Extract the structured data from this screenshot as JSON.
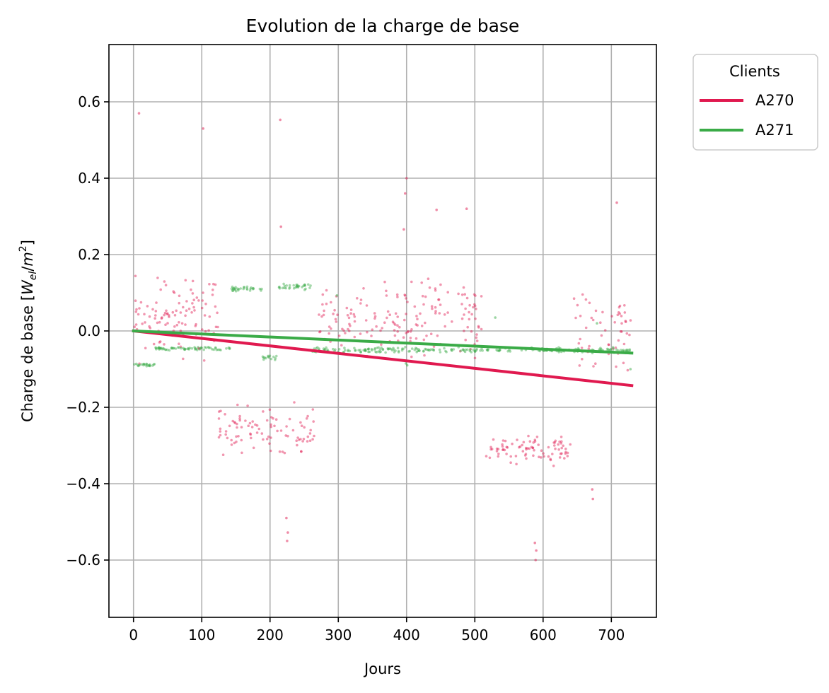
{
  "chart_data": {
    "type": "scatter",
    "title": "Evolution de la charge de base",
    "xlabel": "Jours",
    "ylabel_prefix": "Charge de base [",
    "ylabel_math_base": "W",
    "ylabel_math_sub": "el",
    "ylabel_math_slash": "/",
    "ylabel_math_den": "m",
    "ylabel_math_sup": "2",
    "ylabel_suffix": "]",
    "xlim": [
      -36,
      766
    ],
    "ylim": [
      -0.75,
      0.75
    ],
    "x_ticks": [
      0,
      100,
      200,
      300,
      400,
      500,
      600,
      700
    ],
    "x_tick_labels": [
      "0",
      "100",
      "200",
      "300",
      "400",
      "500",
      "600",
      "700"
    ],
    "y_ticks": [
      -0.6,
      -0.4,
      -0.2,
      0.0,
      0.2,
      0.4,
      0.6
    ],
    "y_tick_labels": [
      "−0.6",
      "−0.4",
      "−0.2",
      "0.0",
      "0.2",
      "0.4",
      "0.6"
    ],
    "grid": true,
    "legend": {
      "title": "Clients",
      "placement": "outside-top-right",
      "entries": [
        "A270",
        "A271"
      ]
    },
    "series": [
      {
        "name": "A270",
        "color": "#e0194f",
        "trend": {
          "x": [
            0,
            730
          ],
          "y": [
            0.0,
            -0.143
          ]
        },
        "scatter_segments": [
          {
            "x0": 0,
            "x1": 125,
            "center": 0.04,
            "spread": 0.14,
            "count": 110,
            "seed": 11
          },
          {
            "x0": 125,
            "x1": 265,
            "center": -0.26,
            "spread": 0.09,
            "count": 95,
            "seed": 12
          },
          {
            "x0": 265,
            "x1": 510,
            "center": 0.04,
            "spread": 0.13,
            "count": 170,
            "seed": 13
          },
          {
            "x0": 515,
            "x1": 645,
            "center": -0.31,
            "spread": 0.05,
            "count": 85,
            "seed": 14
          },
          {
            "x0": 645,
            "x1": 730,
            "center": 0.0,
            "spread": 0.15,
            "count": 55,
            "seed": 15
          }
        ],
        "outliers": [
          {
            "x": 8,
            "y": 0.57
          },
          {
            "x": 102,
            "y": 0.53
          },
          {
            "x": 215,
            "y": 0.553
          },
          {
            "x": 224,
            "y": -0.49
          },
          {
            "x": 225,
            "y": -0.55
          },
          {
            "x": 226,
            "y": -0.528
          },
          {
            "x": 588,
            "y": -0.555
          },
          {
            "x": 589,
            "y": -0.6
          },
          {
            "x": 590,
            "y": -0.575
          },
          {
            "x": 672,
            "y": -0.415
          },
          {
            "x": 673,
            "y": -0.44
          },
          {
            "x": 398,
            "y": 0.36
          },
          {
            "x": 400,
            "y": 0.4
          },
          {
            "x": 444,
            "y": 0.317
          },
          {
            "x": 488,
            "y": 0.32
          },
          {
            "x": 708,
            "y": 0.336
          },
          {
            "x": 216,
            "y": 0.273
          },
          {
            "x": 396,
            "y": 0.266
          }
        ]
      },
      {
        "name": "A271",
        "color": "#3aab47",
        "trend": {
          "x": [
            0,
            730
          ],
          "y": [
            0.0,
            -0.058
          ]
        },
        "scatter_segments": [
          {
            "x0": 0,
            "x1": 32,
            "center": -0.088,
            "spread": 0.006,
            "count": 22,
            "seed": 21
          },
          {
            "x0": 32,
            "x1": 143,
            "center": -0.046,
            "spread": 0.006,
            "count": 65,
            "seed": 22
          },
          {
            "x0": 143,
            "x1": 188,
            "center": 0.11,
            "spread": 0.01,
            "count": 30,
            "seed": 23
          },
          {
            "x0": 188,
            "x1": 212,
            "center": -0.07,
            "spread": 0.01,
            "count": 14,
            "seed": 24
          },
          {
            "x0": 212,
            "x1": 262,
            "center": 0.115,
            "spread": 0.01,
            "count": 32,
            "seed": 25
          },
          {
            "x0": 262,
            "x1": 730,
            "center": -0.05,
            "spread": 0.01,
            "count": 230,
            "seed": 26
          }
        ],
        "outliers": [
          {
            "x": 298,
            "y": 0.093
          },
          {
            "x": 530,
            "y": 0.035
          },
          {
            "x": 679,
            "y": 0.02
          },
          {
            "x": 399,
            "y": -0.085
          },
          {
            "x": 401,
            "y": -0.09
          },
          {
            "x": 728,
            "y": -0.1
          }
        ]
      }
    ]
  }
}
